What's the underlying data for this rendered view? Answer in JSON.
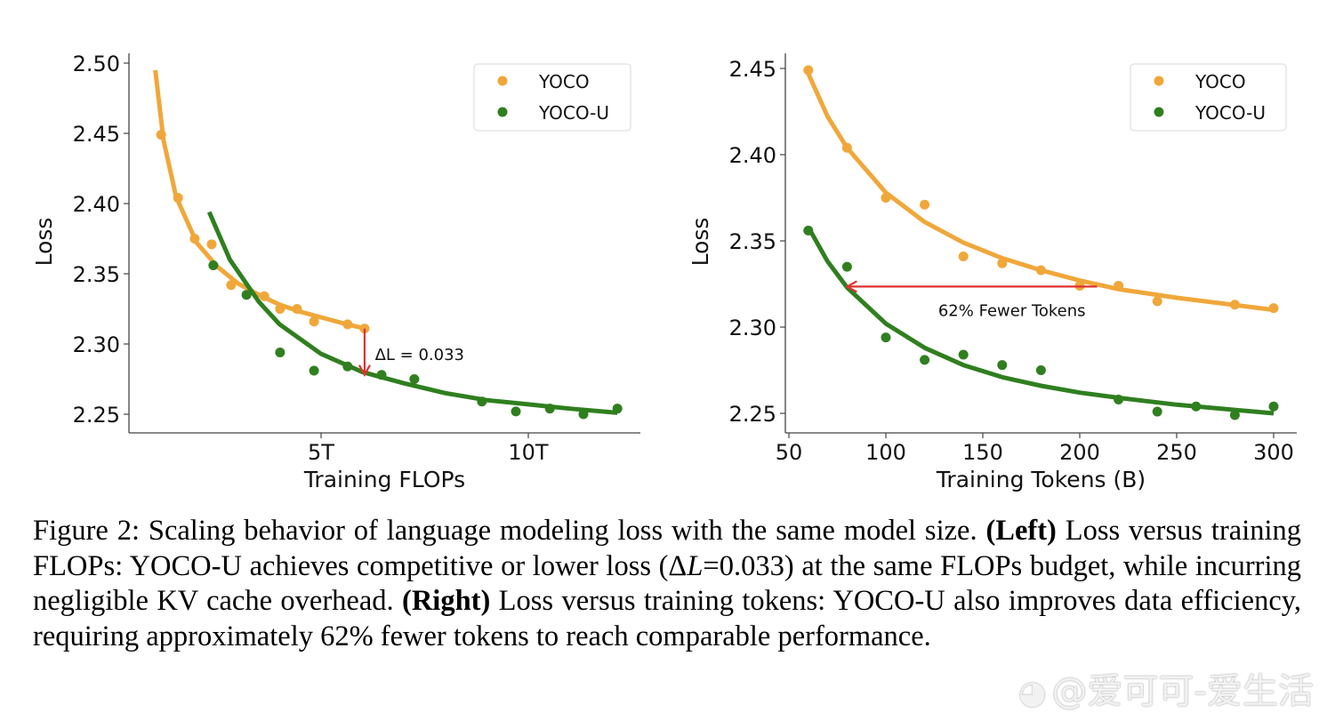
{
  "colors": {
    "yoco": "#f0a73a",
    "yoco_u": "#2f7f1f",
    "arrow": "#e03030",
    "axis": "#444444"
  },
  "chart_data": [
    {
      "type": "scatter",
      "panel": "left",
      "xlabel": "Training FLOPs",
      "ylabel": "Loss",
      "xlim": [
        0.2,
        12.7
      ],
      "ylim": [
        2.239,
        2.507
      ],
      "x_ticks": [
        {
          "value": 5,
          "label": "5T"
        },
        {
          "value": 10,
          "label": "10T"
        }
      ],
      "y_ticks": [
        {
          "value": 2.25,
          "label": "2.25"
        },
        {
          "value": 2.3,
          "label": "2.30"
        },
        {
          "value": 2.35,
          "label": "2.35"
        },
        {
          "value": 2.4,
          "label": "2.40"
        },
        {
          "value": 2.45,
          "label": "2.45"
        },
        {
          "value": 2.5,
          "label": "2.50"
        }
      ],
      "grid": false,
      "legend_position": "top-right",
      "series": [
        {
          "name": "YOCO",
          "points": [
            [
              1.14,
              2.449
            ],
            [
              1.55,
              2.404
            ],
            [
              1.95,
              2.375
            ],
            [
              2.36,
              2.371
            ],
            [
              2.83,
              2.342
            ],
            [
              3.63,
              2.334
            ],
            [
              4.01,
              2.325
            ],
            [
              4.42,
              2.325
            ],
            [
              4.83,
              2.316
            ],
            [
              5.64,
              2.314
            ],
            [
              6.05,
              2.311
            ]
          ],
          "fit": [
            [
              1.0,
              2.495
            ],
            [
              1.2,
              2.445
            ],
            [
              1.5,
              2.405
            ],
            [
              2.0,
              2.372
            ],
            [
              2.5,
              2.355
            ],
            [
              3.0,
              2.343
            ],
            [
              3.5,
              2.335
            ],
            [
              4.0,
              2.328
            ],
            [
              4.5,
              2.323
            ],
            [
              5.0,
              2.319
            ],
            [
              5.5,
              2.315
            ],
            [
              6.05,
              2.311
            ]
          ]
        },
        {
          "name": "YOCO-U",
          "points": [
            [
              2.4,
              2.356
            ],
            [
              3.2,
              2.335
            ],
            [
              4.01,
              2.294
            ],
            [
              4.83,
              2.281
            ],
            [
              5.64,
              2.284
            ],
            [
              6.46,
              2.278
            ],
            [
              7.25,
              2.275
            ],
            [
              8.88,
              2.259
            ],
            [
              9.7,
              2.252
            ],
            [
              10.52,
              2.254
            ],
            [
              11.33,
              2.25
            ],
            [
              12.15,
              2.254
            ]
          ],
          "fit": [
            [
              2.3,
              2.394
            ],
            [
              2.8,
              2.36
            ],
            [
              3.5,
              2.33
            ],
            [
              4.0,
              2.314
            ],
            [
              5.0,
              2.293
            ],
            [
              6.0,
              2.28
            ],
            [
              7.0,
              2.272
            ],
            [
              8.0,
              2.265
            ],
            [
              9.0,
              2.26
            ],
            [
              10.0,
              2.257
            ],
            [
              11.0,
              2.254
            ],
            [
              12.15,
              2.251
            ]
          ]
        }
      ],
      "annotation": {
        "type": "arrow-down",
        "from": [
          6.05,
          2.311
        ],
        "to": [
          6.05,
          2.278
        ],
        "label": "ΔL = 0.033",
        "label_at": [
          6.3,
          2.293
        ]
      }
    },
    {
      "type": "scatter",
      "panel": "right",
      "xlabel": "Training Tokens (B)",
      "ylabel": "Loss",
      "xlim": [
        48,
        312
      ],
      "ylim": [
        2.239,
        2.459
      ],
      "x_ticks": [
        {
          "value": 50,
          "label": "50"
        },
        {
          "value": 100,
          "label": "100"
        },
        {
          "value": 150,
          "label": "150"
        },
        {
          "value": 200,
          "label": "200"
        },
        {
          "value": 250,
          "label": "250"
        },
        {
          "value": 300,
          "label": "300"
        }
      ],
      "y_ticks": [
        {
          "value": 2.25,
          "label": "2.25"
        },
        {
          "value": 2.3,
          "label": "2.30"
        },
        {
          "value": 2.35,
          "label": "2.35"
        },
        {
          "value": 2.4,
          "label": "2.40"
        },
        {
          "value": 2.45,
          "label": "2.45"
        }
      ],
      "grid": false,
      "legend_position": "top-right",
      "series": [
        {
          "name": "YOCO",
          "points": [
            [
              60,
              2.449
            ],
            [
              80,
              2.404
            ],
            [
              100,
              2.375
            ],
            [
              120,
              2.371
            ],
            [
              140,
              2.341
            ],
            [
              160,
              2.337
            ],
            [
              180,
              2.333
            ],
            [
              200,
              2.324
            ],
            [
              220,
              2.324
            ],
            [
              240,
              2.315
            ],
            [
              280,
              2.313
            ],
            [
              300,
              2.311
            ]
          ],
          "fit": [
            [
              60,
              2.447
            ],
            [
              70,
              2.422
            ],
            [
              80,
              2.404
            ],
            [
              100,
              2.378
            ],
            [
              120,
              2.361
            ],
            [
              140,
              2.349
            ],
            [
              160,
              2.34
            ],
            [
              180,
              2.333
            ],
            [
              200,
              2.327
            ],
            [
              220,
              2.322
            ],
            [
              250,
              2.317
            ],
            [
              300,
              2.31
            ]
          ]
        },
        {
          "name": "YOCO-U",
          "points": [
            [
              60,
              2.356
            ],
            [
              80,
              2.335
            ],
            [
              100,
              2.294
            ],
            [
              120,
              2.281
            ],
            [
              140,
              2.284
            ],
            [
              160,
              2.278
            ],
            [
              180,
              2.275
            ],
            [
              220,
              2.258
            ],
            [
              240,
              2.251
            ],
            [
              260,
              2.254
            ],
            [
              280,
              2.249
            ],
            [
              300,
              2.254
            ]
          ],
          "fit": [
            [
              60,
              2.358
            ],
            [
              70,
              2.338
            ],
            [
              80,
              2.323
            ],
            [
              100,
              2.302
            ],
            [
              120,
              2.288
            ],
            [
              140,
              2.278
            ],
            [
              160,
              2.271
            ],
            [
              180,
              2.266
            ],
            [
              200,
              2.262
            ],
            [
              220,
              2.259
            ],
            [
              250,
              2.255
            ],
            [
              300,
              2.25
            ]
          ]
        }
      ],
      "annotation": {
        "type": "arrow-left",
        "from": [
          209,
          2.3235
        ],
        "to": [
          80,
          2.3235
        ],
        "label": "62% Fewer Tokens",
        "label_at": [
          127,
          2.31
        ]
      }
    }
  ],
  "caption": {
    "prefix": "Figure 2: Scaling behavior of language modeling loss with the same model size. ",
    "left_tag": "(Left)",
    "left_text_1": " Loss versus training FLOPs: YOCO-U achieves competitive or lower loss (Δ",
    "left_var": "L",
    "left_text_2": "=0.033) at the same FLOPs budget, while incurring negligible KV cache overhead. ",
    "right_tag": "(Right)",
    "right_text": " Loss versus training tokens: YOCO-U also improves data efficiency, requiring approximately 62% fewer tokens to reach comparable performance."
  },
  "watermark": {
    "icon": "weibo-icon",
    "glyph": "◕",
    "text": "@爱可可-爱生活"
  }
}
